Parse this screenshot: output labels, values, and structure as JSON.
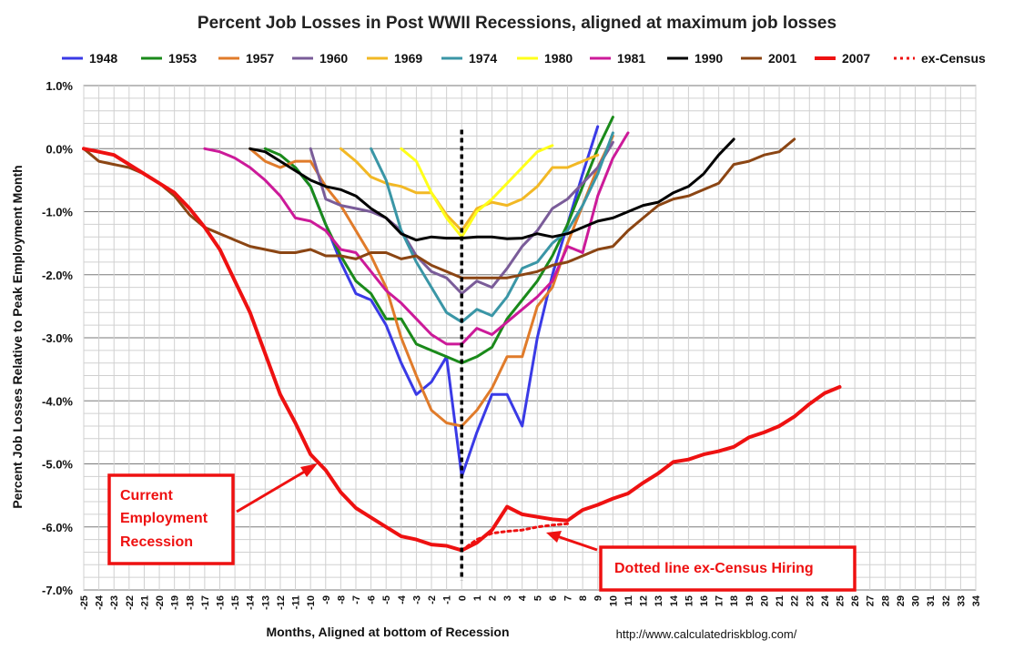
{
  "chart_data": {
    "type": "line",
    "title": "Percent Job Losses in Post WWII Recessions, aligned at maximum job losses",
    "xlabel": "Months, Aligned at bottom of Recession",
    "ylabel": "Percent Job Losses Relative to Peak Employment Month",
    "source": "http://www.calculatedriskblog.com/",
    "xlim": [
      -25,
      34
    ],
    "ylim": [
      -7.0,
      1.0
    ],
    "x_ticks": [
      -25,
      -24,
      -23,
      -22,
      -21,
      -20,
      -19,
      -18,
      -17,
      -16,
      -15,
      -14,
      -13,
      -12,
      -11,
      -10,
      -9,
      -8,
      -7,
      -6,
      -5,
      -4,
      -3,
      -2,
      -1,
      0,
      1,
      2,
      3,
      4,
      5,
      6,
      7,
      8,
      9,
      10,
      11,
      12,
      13,
      14,
      15,
      16,
      17,
      18,
      19,
      20,
      21,
      22,
      23,
      24,
      25,
      26,
      27,
      28,
      29,
      30,
      31,
      32,
      33,
      34
    ],
    "y_ticks": [
      {
        "value": 1.0,
        "label": "1.0%"
      },
      {
        "value": 0.0,
        "label": "0.0%"
      },
      {
        "value": -1.0,
        "label": "-1.0%"
      },
      {
        "value": -2.0,
        "label": "-2.0%"
      },
      {
        "value": -3.0,
        "label": "-3.0%"
      },
      {
        "value": -4.0,
        "label": "-4.0%"
      },
      {
        "value": -5.0,
        "label": "-5.0%"
      },
      {
        "value": -6.0,
        "label": "-6.0%"
      },
      {
        "value": -7.0,
        "label": "-7.0%"
      }
    ],
    "grid": true,
    "zero_marker_x": 0,
    "series": [
      {
        "name": "1948",
        "color": "#3a3ae6",
        "width": 3,
        "dash": "",
        "x": [
          -11,
          -10,
          -9,
          -8,
          -7,
          -6,
          -5,
          -4,
          -3,
          -2,
          -1,
          0,
          1,
          2,
          3,
          4,
          5,
          6,
          7,
          8,
          9
        ],
        "y": [
          -0.3,
          -0.6,
          -1.2,
          -1.8,
          -2.3,
          -2.4,
          -2.8,
          -3.4,
          -3.9,
          -3.7,
          -3.3,
          -5.2,
          -4.5,
          -3.9,
          -3.9,
          -4.4,
          -3.0,
          -2.0,
          -1.2,
          -0.4,
          0.35
        ]
      },
      {
        "name": "1953",
        "color": "#1a8a1a",
        "width": 3,
        "dash": "",
        "x": [
          -13,
          -12,
          -11,
          -10,
          -9,
          -8,
          -7,
          -6,
          -5,
          -4,
          -3,
          -2,
          -1,
          0,
          1,
          2,
          3,
          4,
          5,
          6,
          7,
          8,
          9,
          10
        ],
        "y": [
          0.0,
          -0.1,
          -0.3,
          -0.6,
          -1.2,
          -1.7,
          -2.1,
          -2.3,
          -2.7,
          -2.7,
          -3.1,
          -3.2,
          -3.3,
          -3.4,
          -3.3,
          -3.15,
          -2.7,
          -2.4,
          -2.1,
          -1.7,
          -1.2,
          -0.6,
          0.0,
          0.5
        ]
      },
      {
        "name": "1957",
        "color": "#e07b2a",
        "width": 3,
        "dash": "",
        "x": [
          -14,
          -13,
          -12,
          -11,
          -10,
          -9,
          -8,
          -7,
          -6,
          -5,
          -4,
          -3,
          -2,
          -1,
          0,
          1,
          2,
          3,
          4,
          5,
          6,
          7,
          8,
          9,
          10
        ],
        "y": [
          0.0,
          -0.2,
          -0.3,
          -0.2,
          -0.2,
          -0.6,
          -0.9,
          -1.3,
          -1.7,
          -2.2,
          -3.0,
          -3.6,
          -4.15,
          -4.35,
          -4.4,
          -4.15,
          -3.8,
          -3.3,
          -3.3,
          -2.5,
          -2.2,
          -1.5,
          -0.9,
          -0.3,
          0.2
        ]
      },
      {
        "name": "1960",
        "color": "#7a5c99",
        "width": 3,
        "dash": "",
        "x": [
          -10,
          -9,
          -8,
          -7,
          -6,
          -5,
          -4,
          -3,
          -2,
          -1,
          0,
          1,
          2,
          3,
          4,
          5,
          6,
          7,
          8,
          9,
          10
        ],
        "y": [
          0.0,
          -0.8,
          -0.9,
          -0.95,
          -1.0,
          -1.1,
          -1.3,
          -1.7,
          -1.95,
          -2.05,
          -2.3,
          -2.1,
          -2.2,
          -1.9,
          -1.55,
          -1.3,
          -0.95,
          -0.8,
          -0.55,
          -0.3,
          0.1
        ]
      },
      {
        "name": "1969",
        "color": "#f2b824",
        "width": 3,
        "dash": "",
        "x": [
          -8,
          -7,
          -6,
          -5,
          -4,
          -3,
          -2,
          -1,
          0,
          1,
          2,
          3,
          4,
          5,
          6,
          7,
          8,
          9
        ],
        "y": [
          0.0,
          -0.2,
          -0.45,
          -0.55,
          -0.6,
          -0.7,
          -0.7,
          -1.05,
          -1.3,
          -0.95,
          -0.85,
          -0.9,
          -0.8,
          -0.6,
          -0.3,
          -0.3,
          -0.2,
          -0.1
        ]
      },
      {
        "name": "1974",
        "color": "#3a96a6",
        "width": 3,
        "dash": "",
        "x": [
          -6,
          -5,
          -4,
          -3,
          -2,
          -1,
          0,
          1,
          2,
          3,
          4,
          5,
          6,
          7,
          8,
          9,
          10
        ],
        "y": [
          0.0,
          -0.5,
          -1.3,
          -1.8,
          -2.2,
          -2.6,
          -2.75,
          -2.55,
          -2.65,
          -2.35,
          -1.9,
          -1.8,
          -1.5,
          -1.3,
          -0.9,
          -0.4,
          0.25
        ]
      },
      {
        "name": "1980",
        "color": "#ffff1a",
        "width": 3,
        "dash": "",
        "x": [
          -4,
          -3,
          -2,
          -1,
          0,
          1,
          2,
          3,
          4,
          5,
          6
        ],
        "y": [
          0.0,
          -0.2,
          -0.7,
          -1.1,
          -1.4,
          -1.0,
          -0.8,
          -0.55,
          -0.3,
          -0.05,
          0.05
        ]
      },
      {
        "name": "1981",
        "color": "#cc1a99",
        "width": 3,
        "dash": "",
        "x": [
          -17,
          -16,
          -15,
          -14,
          -13,
          -12,
          -11,
          -10,
          -9,
          -8,
          -7,
          -6,
          -5,
          -4,
          -3,
          -2,
          -1,
          0,
          1,
          2,
          3,
          4,
          5,
          6,
          7,
          8,
          9,
          10,
          11
        ],
        "y": [
          0.0,
          -0.05,
          -0.15,
          -0.3,
          -0.5,
          -0.75,
          -1.1,
          -1.15,
          -1.3,
          -1.6,
          -1.65,
          -1.95,
          -2.25,
          -2.45,
          -2.7,
          -2.95,
          -3.1,
          -3.1,
          -2.85,
          -2.95,
          -2.75,
          -2.55,
          -2.35,
          -2.1,
          -1.55,
          -1.65,
          -0.75,
          -0.15,
          0.25
        ]
      },
      {
        "name": "1990",
        "color": "#000000",
        "width": 3,
        "dash": "",
        "x": [
          -14,
          -13,
          -12,
          -11,
          -10,
          -9,
          -8,
          -7,
          -6,
          -5,
          -4,
          -3,
          -2,
          -1,
          0,
          1,
          2,
          3,
          4,
          5,
          6,
          7,
          8,
          9,
          10,
          11,
          12,
          13,
          14,
          15,
          16,
          17,
          18
        ],
        "y": [
          0.0,
          -0.05,
          -0.2,
          -0.35,
          -0.5,
          -0.6,
          -0.65,
          -0.75,
          -0.95,
          -1.1,
          -1.35,
          -1.45,
          -1.4,
          -1.42,
          -1.42,
          -1.4,
          -1.4,
          -1.43,
          -1.42,
          -1.35,
          -1.4,
          -1.35,
          -1.25,
          -1.15,
          -1.1,
          -1.0,
          -0.9,
          -0.85,
          -0.7,
          -0.6,
          -0.4,
          -0.1,
          0.15
        ]
      },
      {
        "name": "2001",
        "color": "#8b4513",
        "width": 3,
        "dash": "",
        "x": [
          -25,
          -24,
          -23,
          -22,
          -21,
          -20,
          -19,
          -18,
          -17,
          -16,
          -15,
          -14,
          -13,
          -12,
          -11,
          -10,
          -9,
          -8,
          -7,
          -6,
          -5,
          -4,
          -3,
          -2,
          -1,
          0,
          1,
          2,
          3,
          4,
          5,
          6,
          7,
          8,
          9,
          10,
          11,
          12,
          13,
          14,
          15,
          16,
          17,
          18,
          19,
          20,
          21,
          22
        ],
        "y": [
          0.0,
          -0.2,
          -0.25,
          -0.3,
          -0.4,
          -0.55,
          -0.75,
          -1.05,
          -1.25,
          -1.35,
          -1.45,
          -1.55,
          -1.6,
          -1.65,
          -1.65,
          -1.6,
          -1.7,
          -1.7,
          -1.75,
          -1.65,
          -1.65,
          -1.75,
          -1.7,
          -1.85,
          -1.95,
          -2.05,
          -2.05,
          -2.05,
          -2.05,
          -2.0,
          -1.95,
          -1.85,
          -1.8,
          -1.7,
          -1.6,
          -1.55,
          -1.3,
          -1.1,
          -0.9,
          -0.8,
          -0.75,
          -0.65,
          -0.55,
          -0.25,
          -0.2,
          -0.1,
          -0.05,
          0.15
        ]
      },
      {
        "name": "2007",
        "color": "#ee1111",
        "width": 4,
        "dash": "",
        "x": [
          -25,
          -24,
          -23,
          -22,
          -21,
          -20,
          -19,
          -18,
          -17,
          -16,
          -15,
          -14,
          -13,
          -12,
          -11,
          -10,
          -9,
          -8,
          -7,
          -6,
          -5,
          -4,
          -3,
          -2,
          -1,
          0,
          1,
          2,
          3,
          4,
          5,
          6,
          7,
          8,
          9,
          10,
          11,
          12,
          13,
          14,
          15,
          16,
          17,
          18,
          19,
          20,
          21,
          22,
          23,
          24,
          25
        ],
        "y": [
          0.0,
          -0.05,
          -0.1,
          -0.25,
          -0.4,
          -0.55,
          -0.7,
          -0.95,
          -1.25,
          -1.6,
          -2.1,
          -2.6,
          -3.25,
          -3.9,
          -4.35,
          -4.85,
          -5.1,
          -5.45,
          -5.7,
          -5.85,
          -6.0,
          -6.15,
          -6.2,
          -6.28,
          -6.3,
          -6.37,
          -6.25,
          -6.05,
          -5.68,
          -5.8,
          -5.84,
          -5.88,
          -5.9,
          -5.73,
          -5.65,
          -5.55,
          -5.47,
          -5.3,
          -5.15,
          -4.97,
          -4.93,
          -4.85,
          -4.8,
          -4.73,
          -4.58,
          -4.5,
          -4.4,
          -4.25,
          -4.05,
          -3.88,
          -3.78
        ]
      },
      {
        "name": "ex-Census",
        "color": "#ee1111",
        "width": 3,
        "dash": "3,4",
        "x": [
          0,
          1,
          2,
          3,
          4,
          5,
          6,
          7
        ],
        "y": [
          -6.37,
          -6.2,
          -6.1,
          -6.07,
          -6.05,
          -6.0,
          -5.97,
          -5.95
        ]
      }
    ],
    "annotations": [
      {
        "name": "current-recession-callout",
        "lines": [
          "Current",
          "Employment",
          "Recession"
        ]
      },
      {
        "name": "ex-census-callout",
        "lines": [
          "Dotted  line ex-Census Hiring"
        ]
      }
    ]
  }
}
